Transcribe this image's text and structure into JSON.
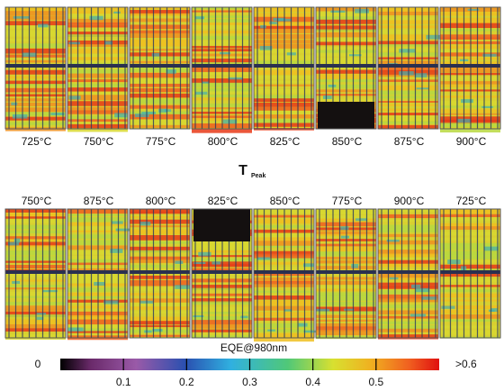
{
  "top_row": {
    "labels": [
      "725°C",
      "750°C",
      "775°C",
      "800°C",
      "825°C",
      "850°C",
      "875°C",
      "900°C"
    ]
  },
  "axis_label": {
    "text": "T",
    "subscript": "Peak"
  },
  "bottom_row": {
    "labels": [
      "750°C",
      "875°C",
      "800°C",
      "825°C",
      "850°C",
      "775°C",
      "900°C",
      "725°C"
    ]
  },
  "colorbar": {
    "title": "EQE@980nm",
    "min_label": "0",
    "max_label": ">0.6",
    "range": [
      0,
      0.6
    ],
    "ticks": [
      0.1,
      0.2,
      0.3,
      0.4,
      0.5
    ]
  }
}
